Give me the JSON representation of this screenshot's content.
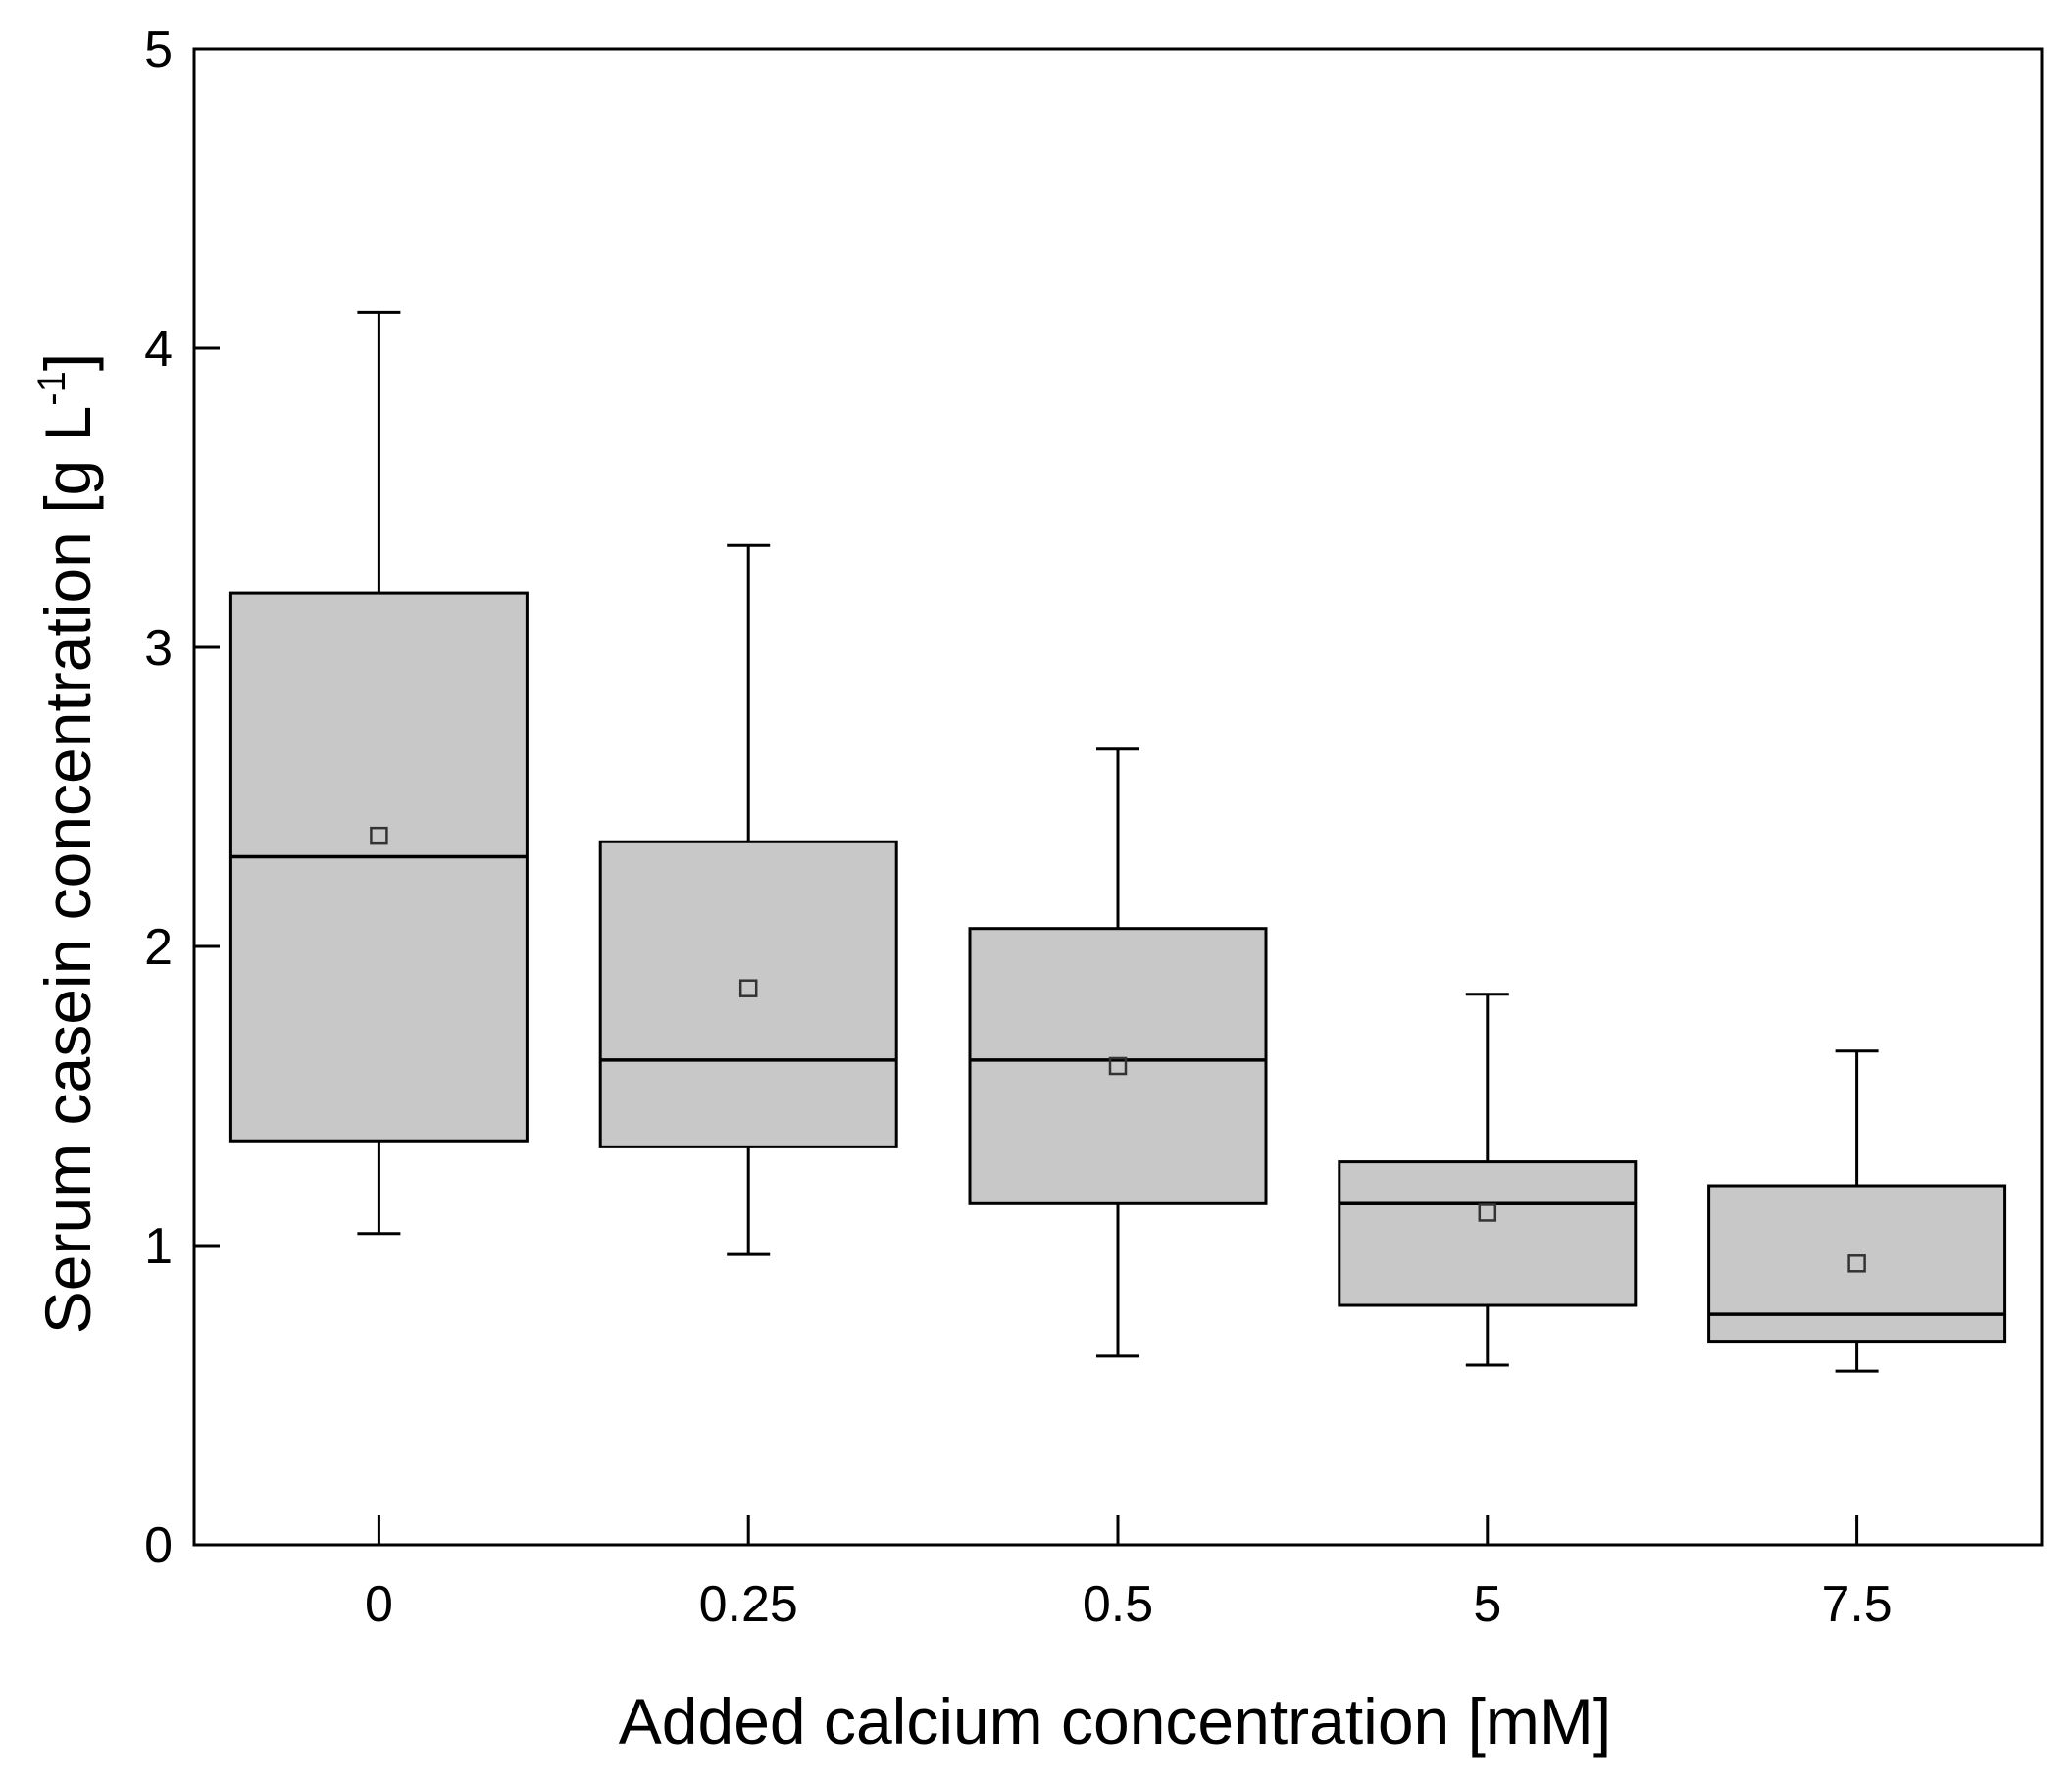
{
  "chart_data": {
    "type": "box",
    "title": "",
    "xlabel": "Added calcium concentration [mM]",
    "ylabel_main": "Serum casein concentration [g L",
    "ylabel_sup": "-1",
    "ylabel_close": "]",
    "ylim": [
      0,
      5
    ],
    "yticks": [
      "0",
      "1",
      "2",
      "3",
      "4",
      "5"
    ],
    "categories": [
      "0",
      "0.25",
      "0.5",
      "5",
      "7.5"
    ],
    "boxes": [
      {
        "category": "0",
        "whisker_low": 1.04,
        "q1": 1.35,
        "median": 2.3,
        "q3": 3.18,
        "whisker_high": 4.12,
        "mean": 2.37
      },
      {
        "category": "0.25",
        "whisker_low": 0.97,
        "q1": 1.33,
        "median": 1.62,
        "q3": 2.35,
        "whisker_high": 3.34,
        "mean": 1.86
      },
      {
        "category": "0.5",
        "whisker_low": 0.63,
        "q1": 1.14,
        "median": 1.62,
        "q3": 2.06,
        "whisker_high": 2.66,
        "mean": 1.6
      },
      {
        "category": "5",
        "whisker_low": 0.6,
        "q1": 0.8,
        "median": 1.14,
        "q3": 1.28,
        "whisker_high": 1.84,
        "mean": 1.11
      },
      {
        "category": "7.5",
        "whisker_low": 0.58,
        "q1": 0.68,
        "median": 0.77,
        "q3": 1.2,
        "whisker_high": 1.65,
        "mean": 0.94
      }
    ],
    "colors": {
      "box_fill": "#c8c8c8",
      "stroke": "#000000",
      "background": "#ffffff"
    },
    "grid": false,
    "legend": "none"
  }
}
